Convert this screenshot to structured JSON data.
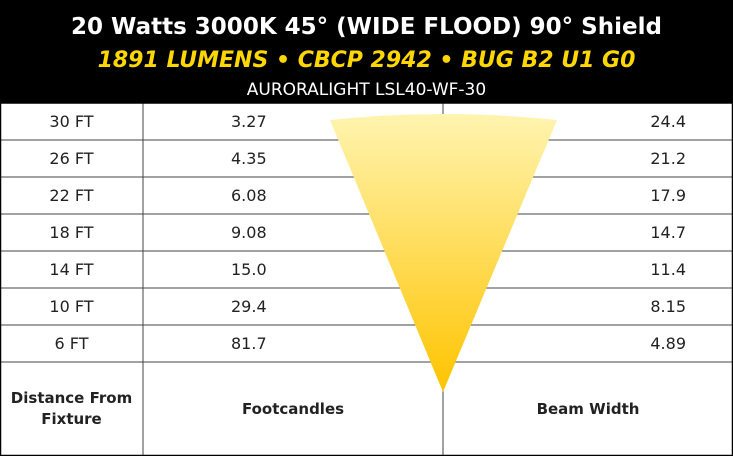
{
  "header": {
    "title": "20 Watts 3000K 45° (WIDE FLOOD) 90° Shield",
    "subtitle": "1891 LUMENS • CBCP 2942 • BUG B2 U1 G0",
    "model": "AURORALIGHT LSL40-WF-30"
  },
  "table": {
    "rows": [
      [
        "30 FT",
        "3.27",
        "24.4"
      ],
      [
        "26 FT",
        "4.35",
        "21.2"
      ],
      [
        "22 FT",
        "6.08",
        "17.9"
      ],
      [
        "18 FT",
        "9.08",
        "14.7"
      ],
      [
        "14 FT",
        "15.0",
        "11.4"
      ],
      [
        "10 FT",
        "29.4",
        "8.15"
      ],
      [
        "6 FT",
        "81.7",
        "4.89"
      ]
    ],
    "columns": [
      "Distance From Fixture",
      "Footcandles",
      "Beam Width"
    ]
  }
}
